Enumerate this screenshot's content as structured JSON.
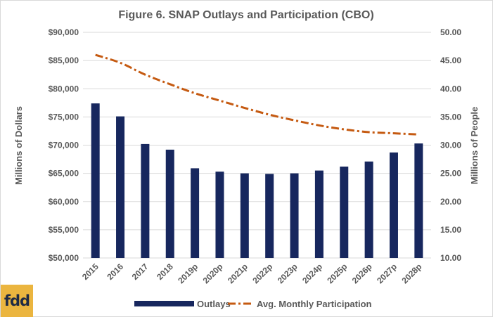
{
  "logo": {
    "text": "fdd"
  },
  "chart_data": {
    "type": "bar+line",
    "title": "Figure 6. SNAP Outlays and Participation (CBO)",
    "categories": [
      "2015",
      "2016",
      "2017",
      "2018",
      "2019p",
      "2020p",
      "2021p",
      "2022p",
      "2023p",
      "2024p",
      "2025p",
      "2026p",
      "2027p",
      "2028p"
    ],
    "series": [
      {
        "name": "Outlays",
        "type": "bar",
        "axis": "left",
        "color": "#17275e",
        "values": [
          77400,
          75100,
          70200,
          69200,
          65900,
          65300,
          65000,
          64900,
          65000,
          65500,
          66200,
          67100,
          68700,
          70300
        ]
      },
      {
        "name": "Avg. Monthly Participation",
        "type": "line",
        "axis": "right",
        "color": "#c55a11",
        "dash": "dash-dot",
        "values": [
          46.0,
          44.6,
          42.5,
          40.8,
          39.2,
          37.9,
          36.6,
          35.4,
          34.4,
          33.5,
          32.8,
          32.3,
          32.1,
          31.9
        ]
      }
    ],
    "y_left": {
      "label": "Millions of Dollars",
      "min": 50000,
      "max": 90000,
      "step": 5000,
      "tick_labels": [
        "$50,000",
        "$55,000",
        "$60,000",
        "$65,000",
        "$70,000",
        "$75,000",
        "$80,000",
        "$85,000",
        "$90,000"
      ]
    },
    "y_right": {
      "label": "Millions of People",
      "min": 10,
      "max": 50,
      "step": 5,
      "tick_labels": [
        "10.00",
        "15.00",
        "20.00",
        "25.00",
        "30.00",
        "35.00",
        "40.00",
        "45.00",
        "50.00"
      ]
    },
    "grid": true,
    "legend_position": "bottom"
  }
}
